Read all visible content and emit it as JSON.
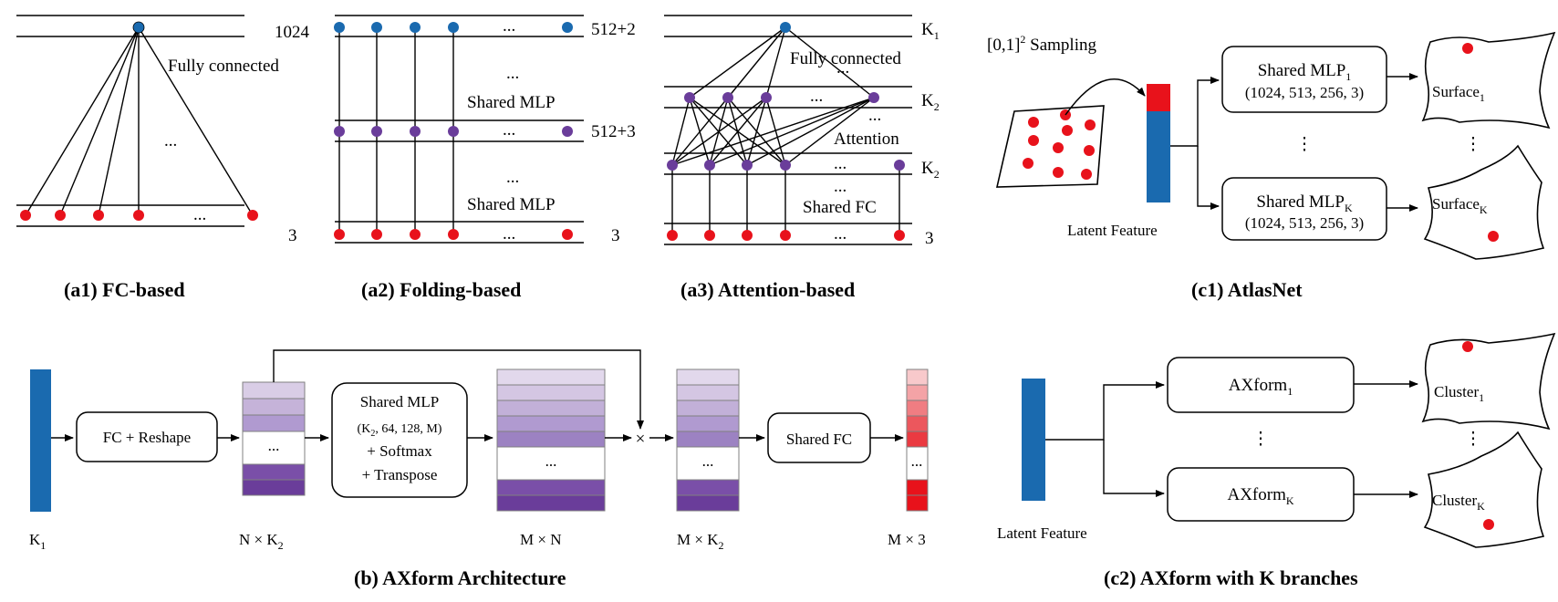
{
  "a1": {
    "top_label": "1024",
    "bottom_label": "3",
    "text": "Fully connected",
    "dots": "...",
    "caption": "(a1) FC-based"
  },
  "a2": {
    "top_label": "512+2",
    "mid_label": "512+3",
    "bottom_label": "3",
    "mlp1": "Shared MLP",
    "mlp2": "Shared MLP",
    "dots": "...",
    "caption": "(a2) Folding-based"
  },
  "a3": {
    "top_label": "K",
    "top_sub": "1",
    "mid_label": "K",
    "mid_sub": "2",
    "low_label": "K",
    "low_sub": "2",
    "bottom_label": "3",
    "fc_text": "Fully connected",
    "att_text": "Attention",
    "sfc_text": "Shared FC",
    "dots": "...",
    "caption": "(a3) Attention-based"
  },
  "c1": {
    "sampling": "[0,1]",
    "sampling_sup": "2",
    "sampling_rest": " Sampling",
    "mlp1_title": "Shared MLP",
    "mlp1_sub": "1",
    "mlp1_dims": "(1024,  513, 256, 3)",
    "mlpk_title": "Shared MLP",
    "mlpk_sub": "K",
    "mlpk_dims": "(1024,  513, 256, 3)",
    "surface1": "Surface",
    "surface1_sub": "1",
    "surfacek": "Surface",
    "surfacek_sub": "K",
    "latent": "Latent  Feature",
    "vdots": "⋮",
    "caption": "(c1) AtlasNet"
  },
  "b": {
    "k1": "K",
    "k1_sub": "1",
    "fc_reshape": "FC + Reshape",
    "nk2": "N × K",
    "nk2_sub": "2",
    "mlp_l1": "Shared MLP",
    "mlp_l2a": "(K",
    "mlp_l2sub": "2",
    "mlp_l2b": ", 64, 128, M)",
    "mlp_l3": "+ Softmax",
    "mlp_l4": "+ Transpose",
    "mn": "M × N",
    "mk2": "M × K",
    "mk2_sub": "2",
    "times": "×",
    "shared_fc": "Shared FC",
    "m3": "M × 3",
    "dots": "...",
    "caption": "(b) AXform Architecture"
  },
  "c2": {
    "ax1": "AXform",
    "ax1_sub": "1",
    "axk": "AXform",
    "axk_sub": "K",
    "cluster1": "Cluster",
    "cluster1_sub": "1",
    "clusterk": "Cluster",
    "clusterk_sub": "K",
    "latent": "Latent  Feature",
    "vdots": "⋮",
    "caption": "(c2) AXform with K branches"
  },
  "colors": {
    "blue": "#1a6aaf",
    "red": "#e8121b",
    "purple": "#6a3d9a",
    "purple_light": "#d9cde6"
  }
}
